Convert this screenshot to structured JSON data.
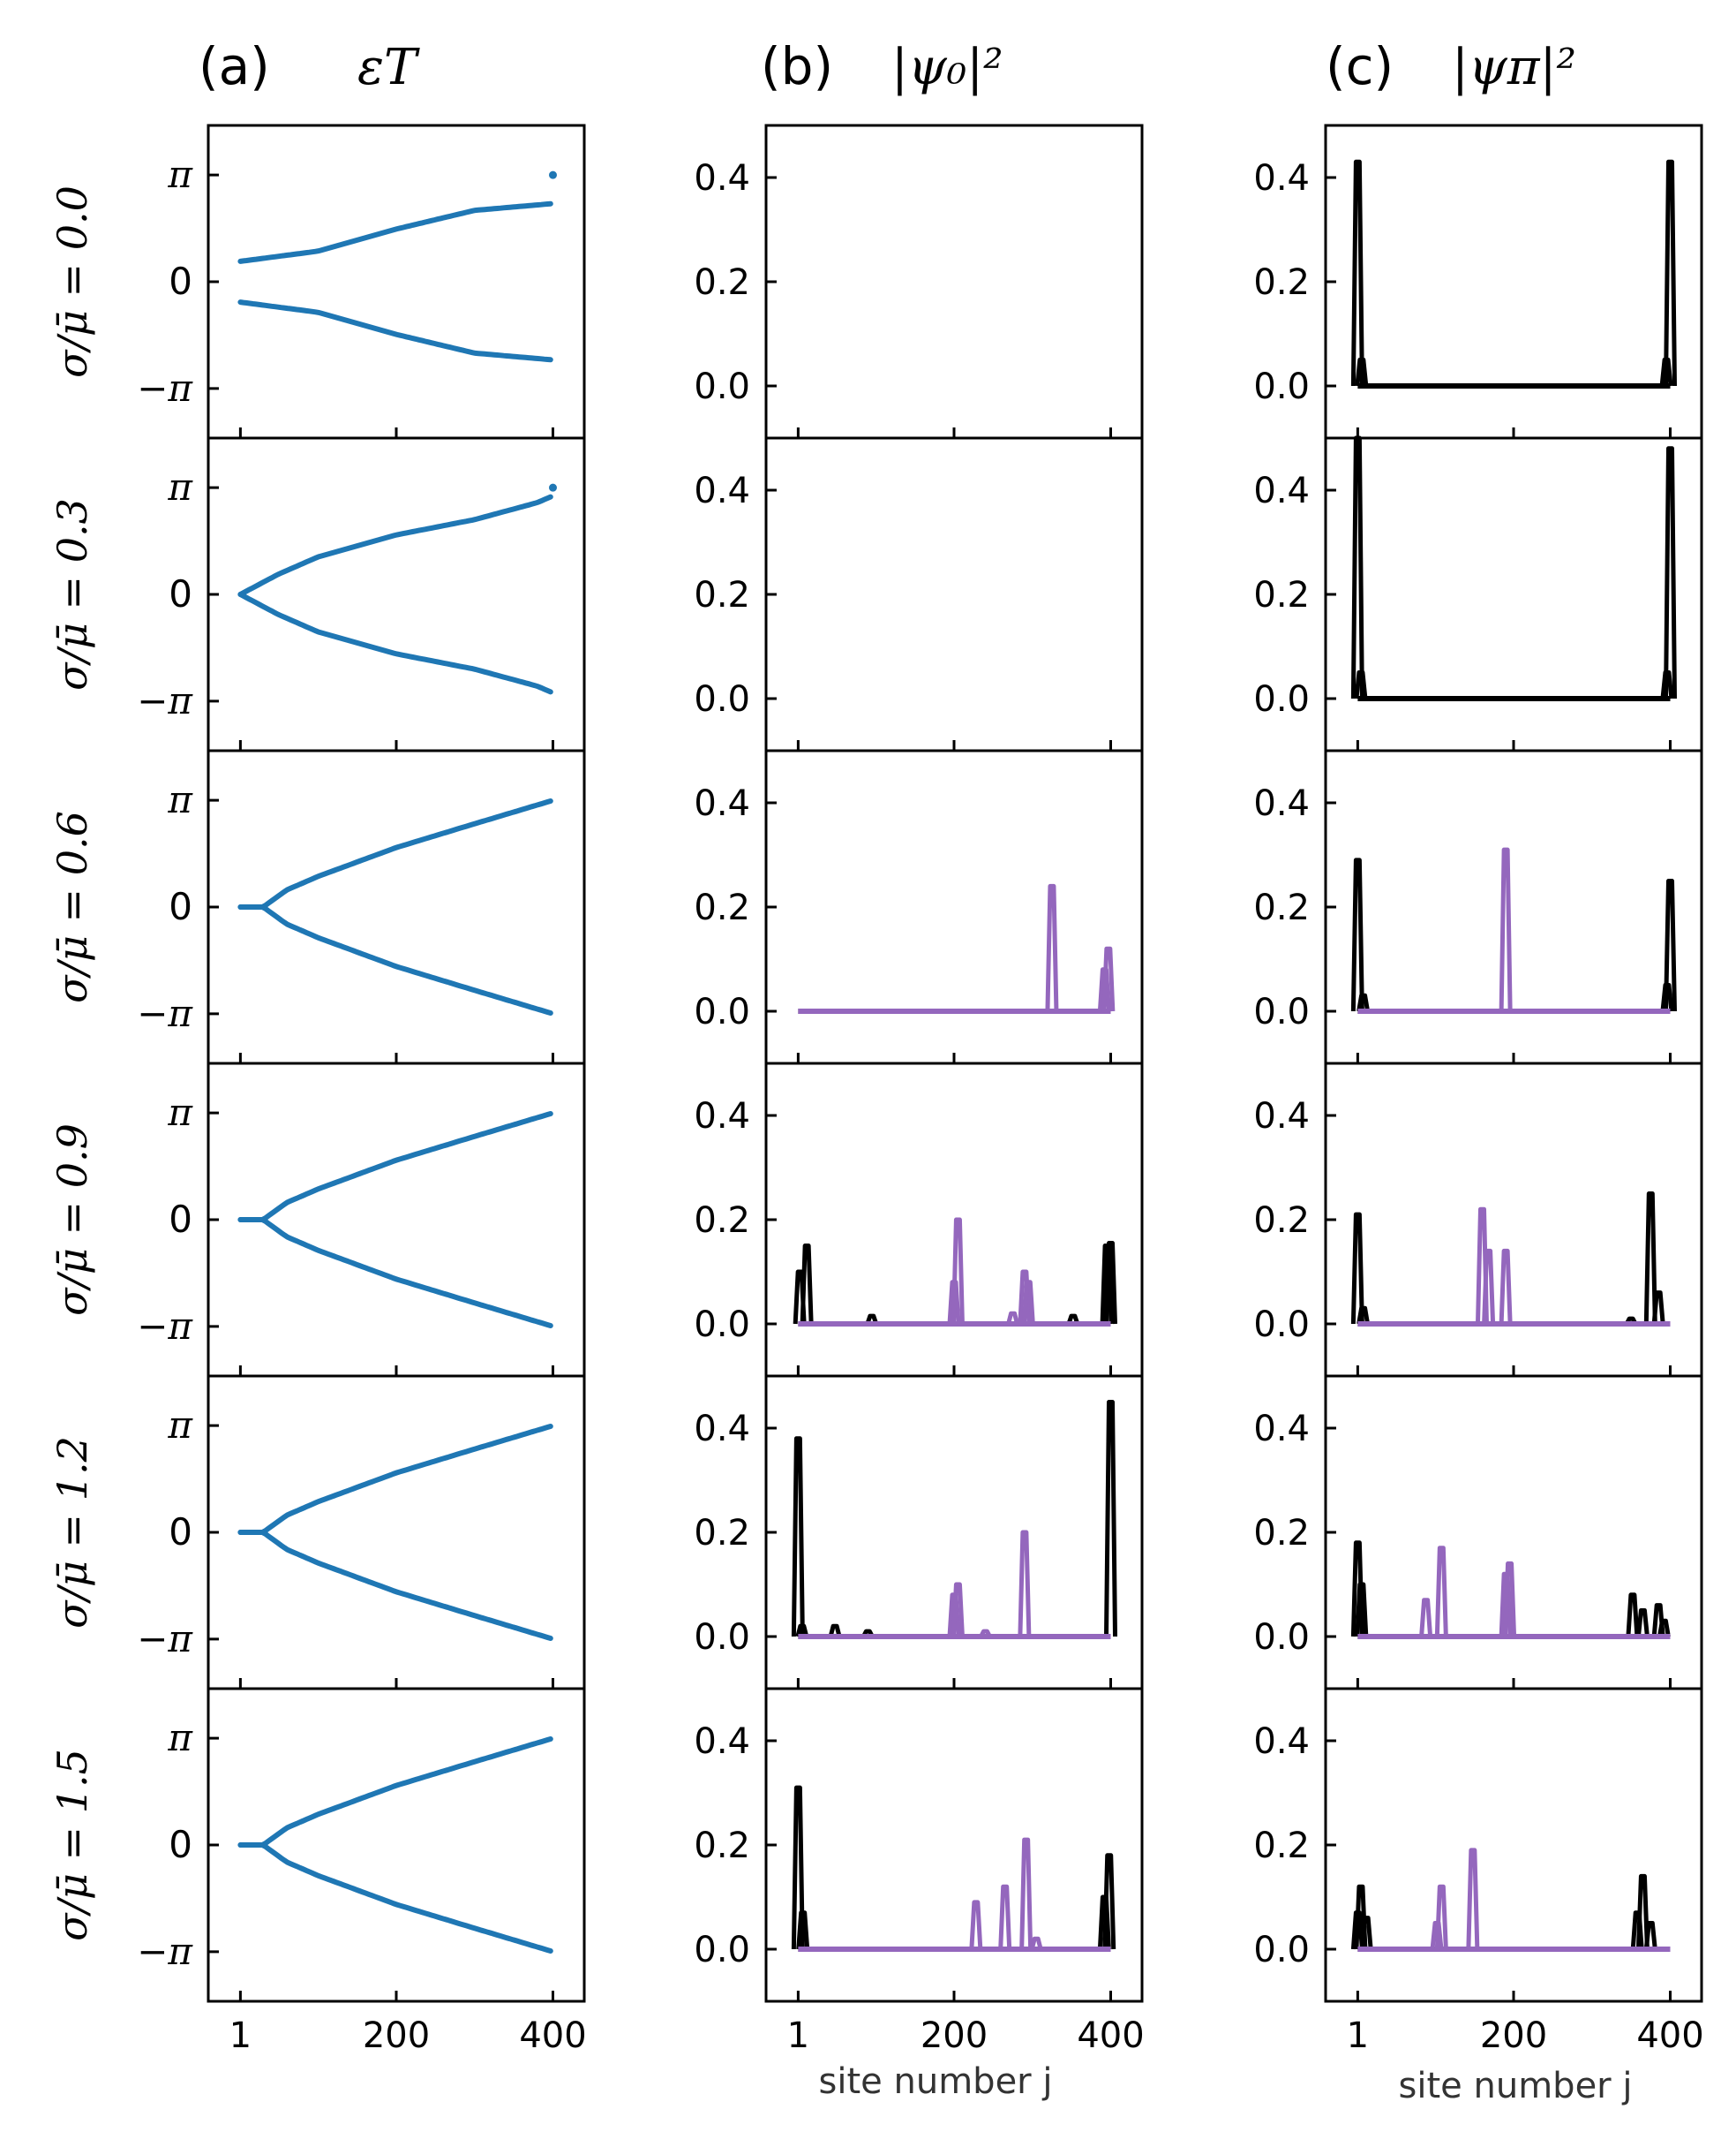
{
  "figure": {
    "column_headers": [
      {
        "letter": "(a)",
        "quantity": "εT"
      },
      {
        "letter": "(b)",
        "quantity": "|ψ₀|²"
      },
      {
        "letter": "(c)",
        "quantity": "|ψπ|²"
      }
    ],
    "row_labels": [
      "σ/μ̄ = 0.0",
      "σ/μ̄ = 0.3",
      "σ/μ̄ = 0.6",
      "σ/μ̄ = 0.9",
      "σ/μ̄ = 1.2",
      "σ/μ̄ = 1.5"
    ],
    "x_tick_labels": [
      "1",
      "200",
      "400"
    ],
    "xlabel": "site number j",
    "colors": {
      "quasienergy": "#1f77b4",
      "zero_mode": "#000000",
      "bulk_mode": "#9467bd"
    }
  },
  "chart_data": [
    {
      "type": "scatter",
      "panel": "(a)",
      "title": "εT",
      "xlim": [
        -40,
        440
      ],
      "ylim": [
        -4.6,
        4.6
      ],
      "x_ticks": [
        1,
        200,
        400
      ],
      "y_ticks": [
        3.1416,
        0,
        -3.1416
      ],
      "y_tick_labels": [
        "π",
        "0",
        "−π"
      ],
      "rows": [
        {
          "sigma_over_mu": 0.0,
          "x": [
            1,
            100,
            200,
            300,
            400
          ],
          "upper": [
            0.6,
            0.9,
            1.55,
            2.1,
            2.3
          ],
          "lower": [
            -0.6,
            -0.9,
            -1.55,
            -2.1,
            -2.3
          ],
          "extra_points": [
            {
              "x": 400,
              "y": 3.14
            }
          ]
        },
        {
          "sigma_over_mu": 0.3,
          "x": [
            1,
            50,
            100,
            200,
            300,
            380,
            400
          ],
          "upper": [
            0,
            0.6,
            1.1,
            1.75,
            2.2,
            2.7,
            2.9
          ],
          "lower": [
            0,
            -0.6,
            -1.1,
            -1.75,
            -2.2,
            -2.7,
            -2.9
          ],
          "extra_points": [
            {
              "x": 400,
              "y": 3.14
            }
          ]
        },
        {
          "sigma_over_mu": 0.6,
          "x": [
            1,
            30,
            60,
            100,
            200,
            300,
            400
          ],
          "upper": [
            0,
            0,
            0.5,
            0.9,
            1.75,
            2.45,
            3.14
          ],
          "lower": [
            0,
            0,
            -0.5,
            -0.9,
            -1.75,
            -2.45,
            -3.14
          ]
        },
        {
          "sigma_over_mu": 0.9,
          "x": [
            1,
            30,
            60,
            100,
            200,
            300,
            400
          ],
          "upper": [
            0,
            0,
            0.5,
            0.9,
            1.75,
            2.45,
            3.14
          ],
          "lower": [
            0,
            0,
            -0.5,
            -0.9,
            -1.75,
            -2.45,
            -3.14
          ]
        },
        {
          "sigma_over_mu": 1.2,
          "x": [
            1,
            30,
            60,
            100,
            200,
            300,
            400
          ],
          "upper": [
            0,
            0,
            0.5,
            0.9,
            1.75,
            2.45,
            3.14
          ],
          "lower": [
            0,
            0,
            -0.5,
            -0.9,
            -1.75,
            -2.45,
            -3.14
          ]
        },
        {
          "sigma_over_mu": 1.5,
          "x": [
            1,
            30,
            60,
            100,
            200,
            300,
            400
          ],
          "upper": [
            0,
            0,
            0.5,
            0.9,
            1.75,
            2.45,
            3.14
          ],
          "lower": [
            0,
            0,
            -0.5,
            -0.9,
            -1.75,
            -2.45,
            -3.14
          ]
        }
      ]
    },
    {
      "type": "line",
      "panel": "(b)",
      "title": "|ψ₀|²",
      "xlabel": "site number j",
      "xlim": [
        -40,
        440
      ],
      "ylim": [
        -0.1,
        0.5
      ],
      "x_ticks": [
        1,
        200,
        400
      ],
      "y_ticks": [
        0.4,
        0.2,
        0.0
      ],
      "y_tick_labels": [
        "0.4",
        "0.2",
        "0.0"
      ],
      "rows": [
        {
          "sigma_over_mu": 0.0,
          "black_peaks": [],
          "purple_peaks": [],
          "baseline": false
        },
        {
          "sigma_over_mu": 0.3,
          "black_peaks": [],
          "purple_peaks": [],
          "baseline": false
        },
        {
          "sigma_over_mu": 0.6,
          "black_peaks": [],
          "purple_peaks": [
            [
              325,
              0.24
            ],
            [
              392,
              0.08
            ],
            [
              397,
              0.12
            ]
          ],
          "baseline": true
        },
        {
          "sigma_over_mu": 0.9,
          "black_peaks": [
            [
              3,
              0.1
            ],
            [
              12,
              0.15
            ],
            [
              95,
              0.015
            ],
            [
              352,
              0.015
            ],
            [
              395,
              0.15
            ],
            [
              400,
              0.155
            ]
          ],
          "purple_peaks": [
            [
              200,
              0.08
            ],
            [
              205,
              0.2
            ],
            [
              275,
              0.02
            ],
            [
              290,
              0.1
            ],
            [
              295,
              0.08
            ]
          ],
          "baseline": true
        },
        {
          "sigma_over_mu": 1.2,
          "black_peaks": [
            [
              1,
              0.38
            ],
            [
              6,
              0.02
            ],
            [
              48,
              0.02
            ],
            [
              90,
              0.01
            ],
            [
              400,
              0.45
            ]
          ],
          "purple_peaks": [
            [
              200,
              0.08
            ],
            [
              205,
              0.1
            ],
            [
              240,
              0.01
            ],
            [
              290,
              0.2
            ]
          ],
          "baseline": true
        },
        {
          "sigma_over_mu": 1.5,
          "black_peaks": [
            [
              1,
              0.31
            ],
            [
              7,
              0.07
            ],
            [
              392,
              0.1
            ],
            [
              398,
              0.18
            ]
          ],
          "purple_peaks": [
            [
              228,
              0.09
            ],
            [
              265,
              0.12
            ],
            [
              292,
              0.21
            ],
            [
              305,
              0.02
            ]
          ],
          "baseline": true
        }
      ]
    },
    {
      "type": "line",
      "panel": "(c)",
      "title": "|ψπ|²",
      "xlabel": "site number j",
      "xlim": [
        -40,
        440
      ],
      "ylim": [
        -0.1,
        0.5
      ],
      "x_ticks": [
        1,
        200,
        400
      ],
      "y_ticks": [
        0.4,
        0.2,
        0.0
      ],
      "y_tick_labels": [
        "0.4",
        "0.2",
        "0.0"
      ],
      "rows": [
        {
          "sigma_over_mu": 0.0,
          "black_peaks": [
            [
              1,
              0.43
            ],
            [
              6,
              0.05
            ],
            [
              395,
              0.05
            ],
            [
              400,
              0.43
            ]
          ],
          "purple_peaks": [],
          "baseline": true
        },
        {
          "sigma_over_mu": 0.3,
          "black_peaks": [
            [
              1,
              0.5
            ],
            [
              5,
              0.05
            ],
            [
              396,
              0.05
            ],
            [
              400,
              0.48
            ]
          ],
          "purple_peaks": [],
          "baseline": true
        },
        {
          "sigma_over_mu": 0.6,
          "black_peaks": [
            [
              1,
              0.29
            ],
            [
              8,
              0.03
            ],
            [
              396,
              0.05
            ],
            [
              400,
              0.25
            ]
          ],
          "purple_peaks": [
            [
              190,
              0.31
            ]
          ],
          "baseline": true
        },
        {
          "sigma_over_mu": 0.9,
          "black_peaks": [
            [
              1,
              0.21
            ],
            [
              8,
              0.03
            ],
            [
              350,
              0.01
            ],
            [
              375,
              0.25
            ],
            [
              385,
              0.06
            ]
          ],
          "purple_peaks": [
            [
              160,
              0.22
            ],
            [
              168,
              0.14
            ],
            [
              190,
              0.14
            ]
          ],
          "baseline": true
        },
        {
          "sigma_over_mu": 1.2,
          "black_peaks": [
            [
              1,
              0.18
            ],
            [
              6,
              0.1
            ],
            [
              352,
              0.08
            ],
            [
              365,
              0.05
            ],
            [
              385,
              0.06
            ],
            [
              392,
              0.03
            ]
          ],
          "purple_peaks": [
            [
              88,
              0.07
            ],
            [
              108,
              0.17
            ],
            [
              190,
              0.12
            ],
            [
              195,
              0.14
            ]
          ],
          "baseline": true
        },
        {
          "sigma_over_mu": 1.5,
          "black_peaks": [
            [
              1,
              0.07
            ],
            [
              5,
              0.12
            ],
            [
              12,
              0.06
            ],
            [
              358,
              0.07
            ],
            [
              365,
              0.14
            ],
            [
              375,
              0.05
            ]
          ],
          "purple_peaks": [
            [
              102,
              0.05
            ],
            [
              108,
              0.12
            ],
            [
              148,
              0.19
            ]
          ],
          "baseline": true
        }
      ]
    }
  ]
}
